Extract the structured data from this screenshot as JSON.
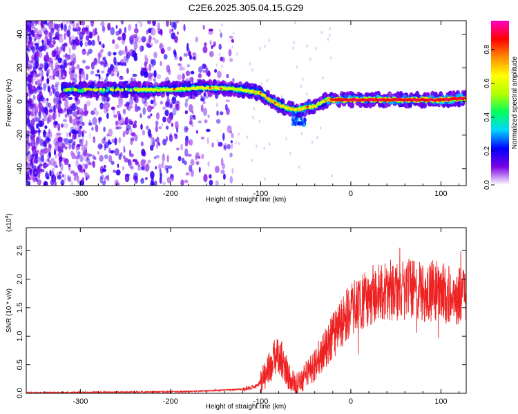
{
  "title": "C2E6.2025.305.04.15.G29",
  "chart_data": [
    {
      "type": "heatmap",
      "name": "spectrogram",
      "xlabel": "Height of straight line (km)",
      "ylabel": "Frequency (Hz)",
      "xlim": [
        -360,
        128
      ],
      "ylim": [
        -50,
        48
      ],
      "xticks": [
        -300,
        -200,
        -100,
        0,
        100
      ],
      "yticks": [
        -40,
        -20,
        0,
        20,
        40
      ],
      "xtick_labels": [
        "-300",
        "-200",
        "-100",
        "0",
        "100"
      ],
      "ytick_labels": [
        "-40",
        "-20",
        "0",
        "20",
        "40"
      ],
      "colorbar": {
        "label": "Normalized spectral amplitude",
        "range": [
          0,
          0.97
        ],
        "ticks": [
          0.0,
          0.2,
          0.4,
          0.6,
          0.8
        ],
        "tick_labels": [
          "0.0",
          "0.2",
          "0.4",
          "0.6",
          "0.8"
        ],
        "colors": [
          "#ffffff",
          "#7a00e6",
          "#0000ff",
          "#00d7ff",
          "#00ff5a",
          "#b4ff00",
          "#ffff00",
          "#ff8c00",
          "#ff0000",
          "#ff00c8"
        ]
      },
      "ridge": {
        "x": [
          -320,
          -270,
          -240,
          -200,
          -175,
          -150,
          -120,
          -100,
          -90,
          -80,
          -70,
          -60,
          -52,
          -45,
          -40,
          -35,
          -30,
          -25,
          -20,
          0,
          50,
          100,
          128
        ],
        "y": [
          7,
          7,
          7,
          7,
          8,
          8,
          7,
          5,
          1,
          -2,
          -4,
          -5,
          -4,
          -3,
          -3,
          -1,
          0,
          1,
          1,
          1,
          1,
          1,
          2
        ]
      },
      "noise_extent_x": [
        -360,
        -150
      ]
    },
    {
      "type": "line",
      "name": "snr",
      "xlabel": "Height of straight line (km)",
      "ylabel": "SNR (10 * v/v)",
      "y_scale_label": "(x10",
      "y_scale_exp": "4",
      "y_scale_close": ")",
      "xlim": [
        -360,
        128
      ],
      "ylim": [
        0,
        2.9
      ],
      "xticks": [
        -300,
        -200,
        -100,
        0,
        100
      ],
      "yticks": [
        0.0,
        0.5,
        1.0,
        1.5,
        2.0,
        2.5
      ],
      "xtick_labels": [
        "-300",
        "-200",
        "-100",
        "0",
        "100"
      ],
      "ytick_labels": [
        "0.0",
        "0.5",
        "1.0",
        "1.5",
        "2.0",
        "2.5"
      ],
      "color": "#ee2222",
      "envelope": {
        "x": [
          -360,
          -250,
          -180,
          -150,
          -120,
          -105,
          -100,
          -95,
          -90,
          -85,
          -80,
          -75,
          -70,
          -65,
          -60,
          -55,
          -50,
          -45,
          -40,
          -35,
          -30,
          -25,
          -20,
          -15,
          -10,
          -5,
          0,
          10,
          20,
          30,
          40,
          50,
          60,
          70,
          80,
          90,
          100,
          110,
          120,
          128
        ],
        "y": [
          0.01,
          0.02,
          0.03,
          0.05,
          0.07,
          0.12,
          0.2,
          0.3,
          0.45,
          0.6,
          0.7,
          0.55,
          0.35,
          0.2,
          0.15,
          0.2,
          0.3,
          0.4,
          0.5,
          0.62,
          0.75,
          0.88,
          1.0,
          1.1,
          1.22,
          1.35,
          1.48,
          1.6,
          1.7,
          1.75,
          1.8,
          1.8,
          1.82,
          1.83,
          1.78,
          1.8,
          1.76,
          1.72,
          1.7,
          1.72
        ]
      }
    }
  ]
}
